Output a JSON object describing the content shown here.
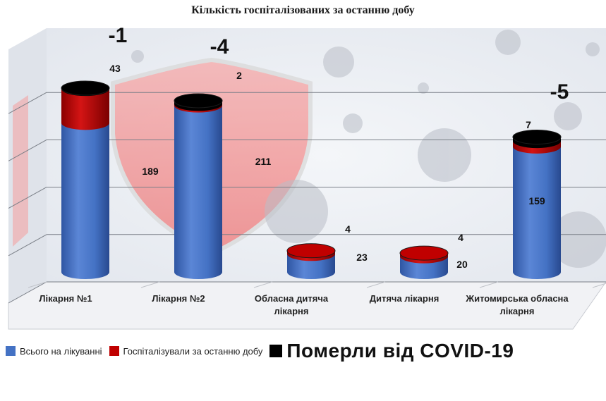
{
  "colors": {
    "total": "#4472C4",
    "hospitalized": "#C00000",
    "died": "#000000"
  },
  "legend": {
    "total_label": "Всього на лікуванні",
    "hospitalized_label": "Госпіталізували за останню добу",
    "died_label": "Померли від COVID-19"
  },
  "chart_data": {
    "type": "bar",
    "stacked": true,
    "title": "Кількість госпіталізованих за останню добу",
    "categories": [
      "Лікарня №1",
      "Лікарня №2",
      "Обласна дитяча лікарня",
      "Дитяча лікарня",
      "Житомирська обласна лікарня"
    ],
    "series": [
      {
        "name": "Всього на лікуванні",
        "values": [
          189,
          211,
          23,
          20,
          159
        ],
        "labels": [
          "189",
          "211",
          "23",
          "20",
          "159"
        ]
      },
      {
        "name": "Госпіталізували за останню добу",
        "values": [
          43,
          2,
          4,
          4,
          7
        ],
        "labels": [
          "43",
          "2",
          "4",
          "4",
          "7"
        ]
      },
      {
        "name": "Померли від COVID-19",
        "values": [
          1,
          4,
          0,
          0,
          5
        ],
        "labels": [
          "-1",
          "-4",
          "",
          "",
          "-5"
        ]
      }
    ],
    "ylim": [
      0,
      240
    ],
    "grid": true,
    "legend_position": "bottom"
  }
}
